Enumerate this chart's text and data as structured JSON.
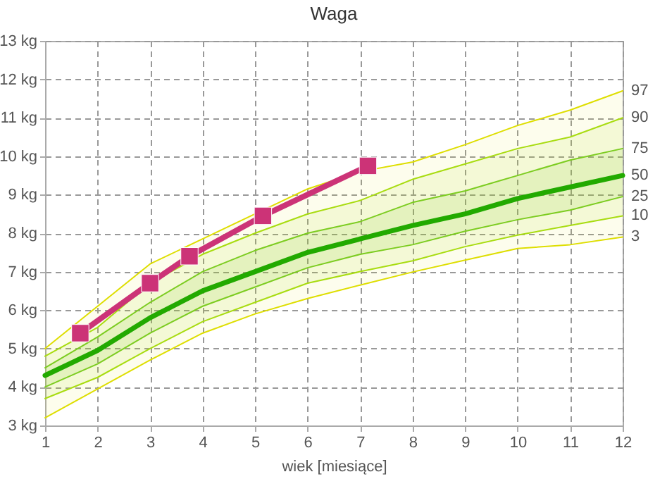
{
  "chart_data": {
    "type": "line",
    "title": "Waga",
    "xlabel": "wiek [miesiące]",
    "x": [
      1,
      2,
      3,
      4,
      5,
      6,
      7,
      8,
      9,
      10,
      11,
      12
    ],
    "xlim": [
      1,
      12
    ],
    "xticks": [
      1,
      2,
      3,
      4,
      5,
      6,
      7,
      8,
      9,
      10,
      11,
      12
    ],
    "ylim": [
      3,
      13
    ],
    "yticks": [
      {
        "value": 3,
        "label": "3 kg"
      },
      {
        "value": 4,
        "label": "4 kg"
      },
      {
        "value": 5,
        "label": "5 kg"
      },
      {
        "value": 6,
        "label": "6 kg"
      },
      {
        "value": 7,
        "label": "7 kg"
      },
      {
        "value": 8,
        "label": "8 kg"
      },
      {
        "value": 9,
        "label": "9 kg"
      },
      {
        "value": 10,
        "label": "10 kg"
      },
      {
        "value": 11,
        "label": "11 kg"
      },
      {
        "value": 12,
        "label": "12 kg"
      },
      {
        "value": 13,
        "label": "13 kg"
      }
    ],
    "grid": true,
    "series": [
      {
        "name": "97",
        "color": "#dede00",
        "values": [
          5.0,
          6.1,
          7.2,
          7.85,
          8.5,
          9.15,
          9.6,
          9.85,
          10.3,
          10.8,
          11.2,
          11.7
        ],
        "lower": [
          3.2,
          3.95,
          4.7,
          5.4,
          5.9,
          6.3,
          6.65,
          6.99,
          7.3,
          7.6,
          7.7,
          7.9
        ],
        "upper": [
          5.0,
          6.1,
          7.2,
          7.85,
          8.5,
          9.15,
          9.6,
          9.85,
          10.3,
          10.8,
          11.2,
          11.7
        ]
      },
      {
        "name": "90",
        "color": "#a8dc10",
        "values": [
          4.8,
          5.55,
          6.7,
          7.45,
          8.0,
          8.5,
          8.85,
          9.4,
          9.8,
          10.2,
          10.5,
          11.0
        ],
        "lower": [
          3.7,
          4.25,
          5.0,
          5.7,
          6.2,
          6.7,
          7.0,
          7.28,
          7.65,
          7.95,
          8.2,
          8.45
        ],
        "upper": [
          4.8,
          5.55,
          6.7,
          7.45,
          8.0,
          8.5,
          8.85,
          9.4,
          9.8,
          10.2,
          10.5,
          11.0
        ]
      },
      {
        "name": "75",
        "color": "#7ccc20",
        "values": [
          4.5,
          5.3,
          6.2,
          7.0,
          7.55,
          8.0,
          8.3,
          8.8,
          9.1,
          9.5,
          9.9,
          10.2
        ],
        "lower": [
          4.0,
          4.6,
          5.4,
          6.1,
          6.6,
          7.1,
          7.45,
          7.7,
          8.05,
          8.35,
          8.6,
          8.95
        ],
        "upper": [
          4.5,
          5.3,
          6.2,
          7.0,
          7.55,
          8.0,
          8.3,
          8.8,
          9.1,
          9.5,
          9.9,
          10.2
        ]
      },
      {
        "name": "50",
        "color": "#22aa00",
        "values": [
          4.3,
          4.95,
          5.8,
          6.5,
          7.0,
          7.5,
          7.85,
          8.2,
          8.5,
          8.9,
          9.2,
          9.5
        ]
      },
      {
        "name": "25",
        "color": "#7ccc20",
        "values": [
          4.0,
          4.6,
          5.4,
          6.1,
          6.6,
          7.1,
          7.45,
          7.7,
          8.05,
          8.35,
          8.6,
          8.95
        ]
      },
      {
        "name": "10",
        "color": "#a8dc10",
        "values": [
          3.7,
          4.25,
          5.0,
          5.7,
          6.2,
          6.7,
          7.0,
          7.28,
          7.65,
          7.95,
          8.2,
          8.45
        ]
      },
      {
        "name": "3",
        "color": "#dede00",
        "values": [
          3.2,
          3.95,
          4.7,
          5.4,
          5.9,
          6.3,
          6.65,
          6.99,
          7.3,
          7.6,
          7.7,
          7.9
        ]
      },
      {
        "color": "#cc3377",
        "marker": "square",
        "x": [
          1.67,
          3.0,
          3.75,
          5.15,
          7.15
        ],
        "values": [
          5.4,
          6.7,
          7.4,
          8.45,
          9.75
        ]
      }
    ]
  }
}
